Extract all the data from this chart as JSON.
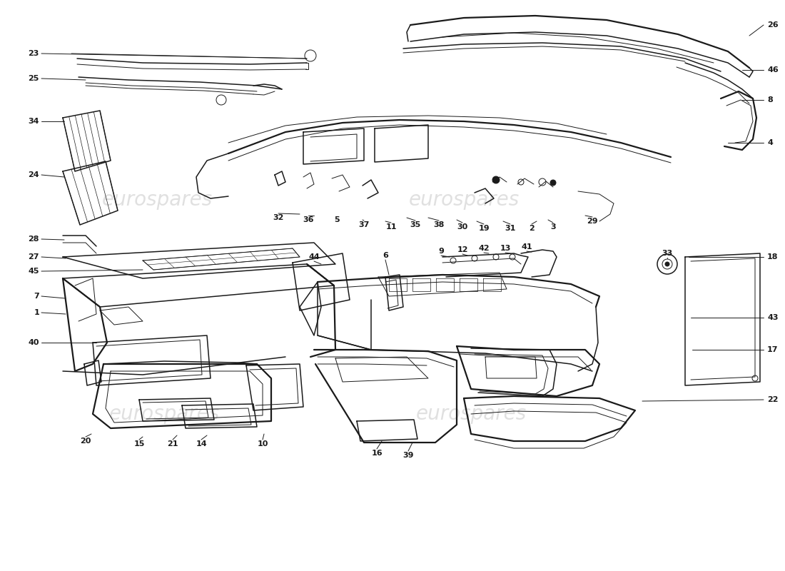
{
  "background_color": "#ffffff",
  "line_color": "#1a1a1a",
  "watermark_text": "eurospares",
  "watermark_color": "#cccccc",
  "fig_width": 11.0,
  "fig_height": 8.0,
  "dpi": 100,
  "label_fontsize": 8,
  "watermark_fontsize": 20,
  "lw_thin": 0.7,
  "lw_med": 1.1,
  "lw_thick": 1.6
}
